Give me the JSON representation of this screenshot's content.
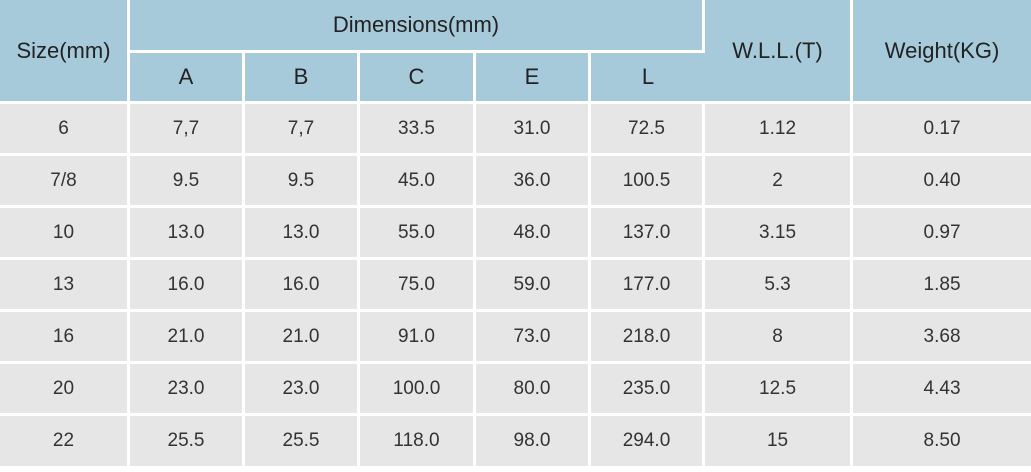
{
  "table": {
    "size_header": "Size(mm)",
    "dimensions_header": "Dimensions(mm)",
    "dim_columns": [
      "A",
      "B",
      "C",
      "E",
      "L"
    ],
    "wll_header": "W.L.L.(T)",
    "weight_header": "Weight(KG)",
    "rows": [
      [
        "6",
        "7,7",
        "7,7",
        "33.5",
        "31.0",
        "72.5",
        "1.12",
        "0.17"
      ],
      [
        "7/8",
        "9.5",
        "9.5",
        "45.0",
        "36.0",
        "100.5",
        "2",
        "0.40"
      ],
      [
        "10",
        "13.0",
        "13.0",
        "55.0",
        "48.0",
        "137.0",
        "3.15",
        "0.97"
      ],
      [
        "13",
        "16.0",
        "16.0",
        "75.0",
        "59.0",
        "177.0",
        "5.3",
        "1.85"
      ],
      [
        "16",
        "21.0",
        "21.0",
        "91.0",
        "73.0",
        "218.0",
        "8",
        "3.68"
      ],
      [
        "20",
        "23.0",
        "23.0",
        "100.0",
        "80.0",
        "235.0",
        "12.5",
        "4.43"
      ],
      [
        "22",
        "25.5",
        "25.5",
        "118.0",
        "98.0",
        "294.0",
        "15",
        "8.50"
      ]
    ]
  },
  "colors": {
    "header_bg": "#a7cadb",
    "cell_bg": "#e6e6e6",
    "separator": "#ffffff"
  }
}
